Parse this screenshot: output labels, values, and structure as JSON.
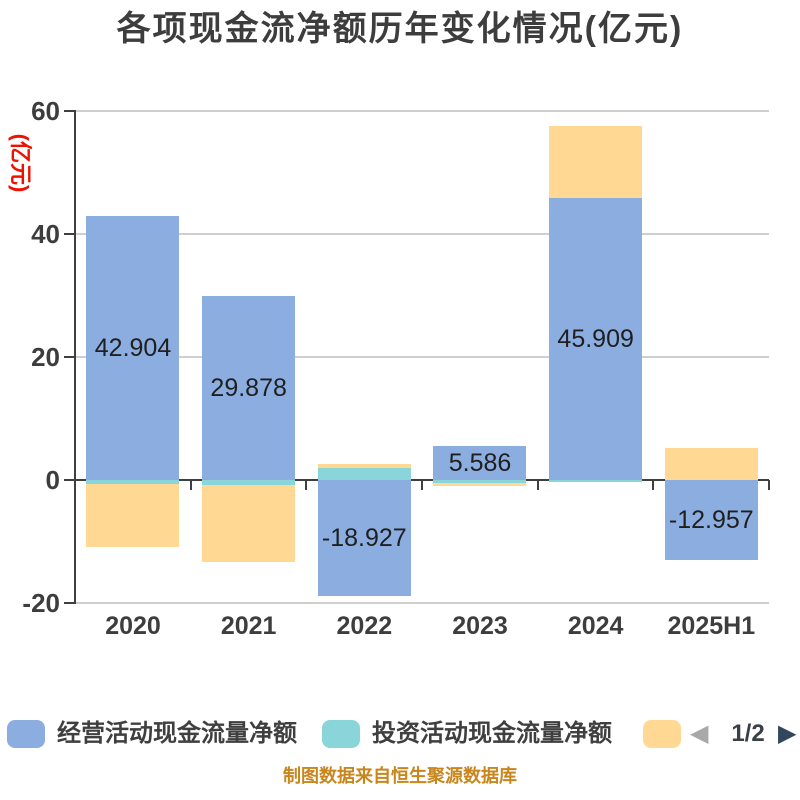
{
  "title": "各项现金流净额历年变化情况(亿元)",
  "y_axis": {
    "name": "(亿元)",
    "name_color": "#ee1100",
    "ticks": [
      60,
      40,
      20,
      0,
      -20
    ],
    "tick_labels": [
      "60",
      "40",
      "20",
      "0",
      "-20"
    ]
  },
  "chart_data": {
    "type": "bar",
    "stacked": true,
    "categories": [
      "2020",
      "2021",
      "2022",
      "2023",
      "2024",
      "2025H1"
    ],
    "series": [
      {
        "name": "经营活动现金流量净额",
        "color": "#8cade0",
        "values": [
          42.904,
          29.878,
          -18.927,
          5.586,
          45.909,
          -12.957
        ],
        "data_labels": [
          "42.904",
          "29.878",
          "-18.927",
          "5.586",
          "45.909",
          "-12.957"
        ]
      },
      {
        "name": "投资活动现金流量净额",
        "color": "#8ad5da",
        "values": [
          -0.7,
          -0.8,
          2.0,
          -0.5,
          -0.4,
          0
        ],
        "values_estimated": true
      },
      {
        "name": "",
        "color": "#ffd994",
        "values": [
          -10.2,
          -12.5,
          0.65,
          -0.5,
          11.6,
          5.2
        ],
        "values_estimated": true
      }
    ],
    "ylim": [
      -20,
      60
    ],
    "grid": true,
    "legend_position": "bottom"
  },
  "legend": {
    "items": [
      {
        "label": "经营活动现金流量净额",
        "color": "#8cade0"
      },
      {
        "label": "投资活动现金流量净额",
        "color": "#8ad5da"
      },
      {
        "label": "",
        "color": "#ffd994"
      }
    ],
    "pagination": {
      "current": "1/2",
      "prev_enabled": false,
      "next_enabled": true
    }
  },
  "footer": "制图数据来自恒生聚源数据库"
}
